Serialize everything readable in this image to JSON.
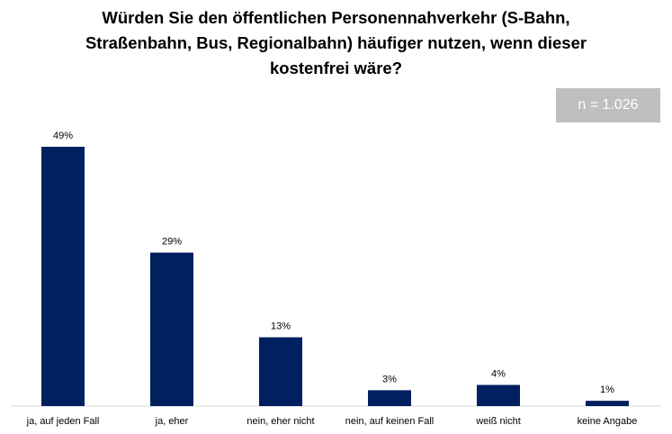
{
  "chart_data": {
    "type": "bar",
    "title_lines": [
      "Würden Sie den öffentlichen Personennahverkehr (S-Bahn,",
      "Straßenbahn, Bus, Regionalbahn) häufiger nutzen, wenn dieser",
      "kostenfrei wäre?"
    ],
    "annotation": "n = 1.026",
    "categories": [
      "ja, auf jeden Fall",
      "ja, eher",
      "nein, eher nicht",
      "nein, auf keinen Fall",
      "weiß nicht",
      "keine Angabe"
    ],
    "values": [
      49,
      29,
      13,
      3,
      4,
      1
    ],
    "data_labels": [
      "49%",
      "29%",
      "13%",
      "3%",
      "4%",
      "1%"
    ],
    "unit": "%",
    "ylim": [
      0,
      50
    ],
    "grid": false,
    "bar_color": "#002060",
    "badge_color": "#bfbfbf"
  }
}
